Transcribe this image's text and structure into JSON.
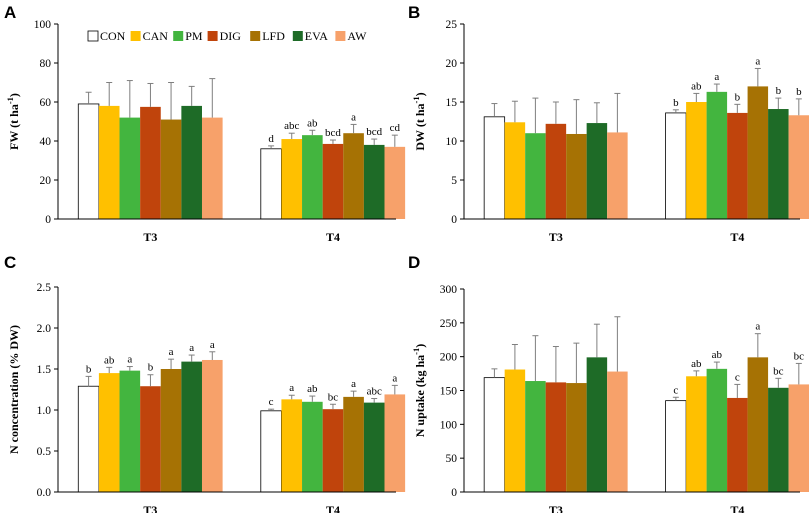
{
  "colors": {
    "CON": "#ffffff",
    "CAN": "#ffc000",
    "PM": "#43b53f",
    "DIG": "#c0440c",
    "LFD": "#a67204",
    "EVA": "#1e6b27",
    "AW": "#f7a16a"
  },
  "legend": [
    "CON",
    "CAN",
    "PM",
    "DIG",
    "LFD",
    "EVA",
    "AW"
  ],
  "chart_data": [
    {
      "panel": "A",
      "type": "bar",
      "ylabel_main": "FW (t ha",
      "ylabel_sup": "-1",
      "ylabel_end": ")",
      "ylim": [
        0,
        100
      ],
      "yticks": [
        0,
        20,
        40,
        60,
        80,
        100
      ],
      "categories": [
        "T3",
        "T4"
      ],
      "legend_shown": true,
      "series": [
        {
          "name": "CON",
          "values": [
            59,
            36
          ],
          "errors": [
            6,
            1.5
          ],
          "letters": [
            "",
            "d"
          ]
        },
        {
          "name": "CAN",
          "values": [
            58,
            41
          ],
          "errors": [
            12,
            3
          ],
          "letters": [
            "",
            "abc"
          ]
        },
        {
          "name": "PM",
          "values": [
            52,
            43
          ],
          "errors": [
            19,
            2.5
          ],
          "letters": [
            "",
            "ab"
          ]
        },
        {
          "name": "DIG",
          "values": [
            57.5,
            38.5
          ],
          "errors": [
            12,
            2
          ],
          "letters": [
            "",
            "bcd"
          ]
        },
        {
          "name": "LFD",
          "values": [
            51,
            44
          ],
          "errors": [
            19,
            4.5
          ],
          "letters": [
            "",
            "a"
          ]
        },
        {
          "name": "EVA",
          "values": [
            58,
            38
          ],
          "errors": [
            10,
            3
          ],
          "letters": [
            "",
            "bcd"
          ]
        },
        {
          "name": "AW",
          "values": [
            52,
            37
          ],
          "errors": [
            20,
            6
          ],
          "letters": [
            "",
            "cd"
          ]
        }
      ]
    },
    {
      "panel": "B",
      "type": "bar",
      "ylabel_main": "DW (t ha",
      "ylabel_sup": "-1",
      "ylabel_end": ")",
      "ylim": [
        0,
        25
      ],
      "yticks": [
        0,
        5,
        10,
        15,
        20,
        25
      ],
      "categories": [
        "T3",
        "T4"
      ],
      "legend_shown": false,
      "series": [
        {
          "name": "CON",
          "values": [
            13.1,
            13.6
          ],
          "errors": [
            1.7,
            0.4
          ],
          "letters": [
            "",
            "b"
          ]
        },
        {
          "name": "CAN",
          "values": [
            12.4,
            15.0
          ],
          "errors": [
            2.7,
            1.1
          ],
          "letters": [
            "",
            "ab"
          ]
        },
        {
          "name": "PM",
          "values": [
            11.0,
            16.3
          ],
          "errors": [
            4.5,
            1.0
          ],
          "letters": [
            "",
            "a"
          ]
        },
        {
          "name": "DIG",
          "values": [
            12.2,
            13.6
          ],
          "errors": [
            2.8,
            1.1
          ],
          "letters": [
            "",
            "b"
          ]
        },
        {
          "name": "LFD",
          "values": [
            10.9,
            17.0
          ],
          "errors": [
            4.4,
            2.3
          ],
          "letters": [
            "",
            "a"
          ]
        },
        {
          "name": "EVA",
          "values": [
            12.3,
            14.1
          ],
          "errors": [
            2.6,
            1.4
          ],
          "letters": [
            "",
            "b"
          ]
        },
        {
          "name": "AW",
          "values": [
            11.1,
            13.3
          ],
          "errors": [
            5.0,
            2.1
          ],
          "letters": [
            "",
            "b"
          ]
        }
      ]
    },
    {
      "panel": "C",
      "type": "bar",
      "ylabel_main": "N concentration (% DW)",
      "ylabel_sup": "",
      "ylabel_end": "",
      "ylim": [
        0,
        2.5
      ],
      "yticks": [
        "0.0",
        "0.5",
        "1.0",
        "1.5",
        "2.0",
        "2.5"
      ],
      "categories": [
        "T3",
        "T4"
      ],
      "legend_shown": false,
      "series": [
        {
          "name": "CON",
          "values": [
            1.29,
            0.99
          ],
          "errors": [
            0.12,
            0.02
          ],
          "letters": [
            "b",
            "c"
          ]
        },
        {
          "name": "CAN",
          "values": [
            1.45,
            1.13
          ],
          "errors": [
            0.07,
            0.05
          ],
          "letters": [
            "ab",
            "a"
          ]
        },
        {
          "name": "PM",
          "values": [
            1.48,
            1.1
          ],
          "errors": [
            0.05,
            0.07
          ],
          "letters": [
            "a",
            "ab"
          ]
        },
        {
          "name": "DIG",
          "values": [
            1.29,
            1.01
          ],
          "errors": [
            0.14,
            0.06
          ],
          "letters": [
            "b",
            "bc"
          ]
        },
        {
          "name": "LFD",
          "values": [
            1.5,
            1.16
          ],
          "errors": [
            0.12,
            0.07
          ],
          "letters": [
            "a",
            "a"
          ]
        },
        {
          "name": "EVA",
          "values": [
            1.59,
            1.09
          ],
          "errors": [
            0.08,
            0.05
          ],
          "letters": [
            "a",
            "abc"
          ]
        },
        {
          "name": "AW",
          "values": [
            1.61,
            1.19
          ],
          "errors": [
            0.1,
            0.11
          ],
          "letters": [
            "a",
            "a"
          ]
        }
      ]
    },
    {
      "panel": "D",
      "type": "bar",
      "ylabel_main": "N uptake (kg ha",
      "ylabel_sup": "-1",
      "ylabel_end": ")",
      "ylim": [
        0,
        300
      ],
      "yticks": [
        0,
        50,
        100,
        150,
        200,
        250,
        300
      ],
      "categories": [
        "T3",
        "T4"
      ],
      "legend_shown": false,
      "series": [
        {
          "name": "CON",
          "values": [
            169,
            135
          ],
          "errors": [
            13,
            5
          ],
          "letters": [
            "",
            "c"
          ]
        },
        {
          "name": "CAN",
          "values": [
            181,
            171
          ],
          "errors": [
            37,
            8
          ],
          "letters": [
            "",
            "ab"
          ]
        },
        {
          "name": "PM",
          "values": [
            164,
            182
          ],
          "errors": [
            67,
            10
          ],
          "letters": [
            "",
            "ab"
          ]
        },
        {
          "name": "DIG",
          "values": [
            162,
            139
          ],
          "errors": [
            53,
            20
          ],
          "letters": [
            "",
            "c"
          ]
        },
        {
          "name": "LFD",
          "values": [
            161,
            199
          ],
          "errors": [
            59,
            35
          ],
          "letters": [
            "",
            "a"
          ]
        },
        {
          "name": "EVA",
          "values": [
            199,
            154
          ],
          "errors": [
            49,
            14
          ],
          "letters": [
            "",
            "bc"
          ]
        },
        {
          "name": "AW",
          "values": [
            178,
            159
          ],
          "errors": [
            81,
            31
          ],
          "letters": [
            "",
            "bc"
          ]
        }
      ]
    }
  ]
}
